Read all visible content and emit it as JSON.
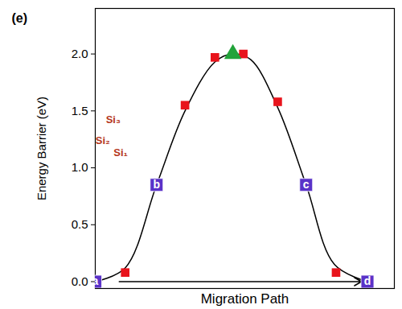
{
  "chart_data": {
    "type": "line",
    "title": "(e)",
    "x_label": "Migration Path",
    "y_label": "Energy Barrier (eV)",
    "xlim": [
      0,
      1
    ],
    "ylim": [
      -0.06,
      2.4
    ],
    "yticks": [
      {
        "value": 0,
        "label": "0.0"
      },
      {
        "value": 0.5,
        "label": "0.5"
      },
      {
        "value": 1,
        "label": "1.0"
      },
      {
        "value": 1.5,
        "label": "1.5"
      },
      {
        "value": 2,
        "label": "2.0"
      }
    ],
    "tick_labels": "y",
    "series": [
      {
        "type": "line",
        "color": "#000000",
        "x": [
          0,
          0.1,
          0.205,
          0.3,
          0.4,
          0.46,
          0.52,
          0.61,
          0.705,
          0.8,
          0.91
        ],
        "values": [
          0,
          0.12,
          0.85,
          1.5,
          1.93,
          2.0,
          1.95,
          1.53,
          0.85,
          0.15,
          0
        ]
      },
      {
        "type": "scatter",
        "marker": "square",
        "color": "#e8141c",
        "x": [
          0.1,
          0.3,
          0.4,
          0.495,
          0.61,
          0.805
        ],
        "values": [
          0.08,
          1.55,
          1.97,
          2.0,
          1.58,
          0.08
        ]
      },
      {
        "type": "scatter",
        "marker": "square",
        "color": "#5a32c8",
        "x": [
          0,
          0.205,
          0.705,
          0.91
        ],
        "values": [
          0,
          0.85,
          0.85,
          0
        ],
        "point_labels": [
          "a",
          "b",
          "c",
          "d"
        ]
      },
      {
        "type": "scatter",
        "marker": "triangle",
        "color": "#22a33a",
        "x": [
          0.46
        ],
        "values": [
          2.0
        ]
      }
    ],
    "arrow": {
      "x1": 0.08,
      "x2": 0.89,
      "y": 0,
      "color": "#000000"
    },
    "annotations": [
      {
        "text": "Si₃",
        "x": 0.06,
        "y": 1.42,
        "color": "#b5361c"
      },
      {
        "text": "Si₂",
        "x": 0.025,
        "y": 1.24,
        "color": "#b5361c"
      },
      {
        "text": "Si₁",
        "x": 0.085,
        "y": 1.13,
        "color": "#b5361c"
      }
    ]
  }
}
